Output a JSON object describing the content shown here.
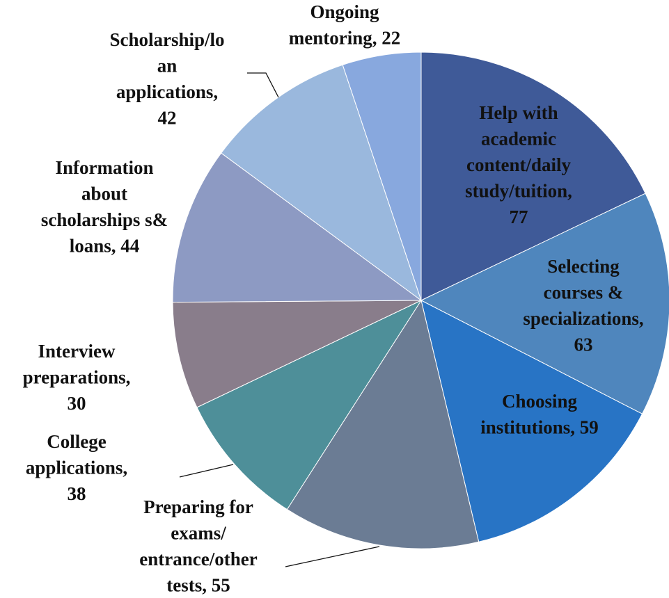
{
  "chart_data": {
    "type": "pie",
    "labels": [
      [
        "Help with",
        "academic",
        "content/daily",
        "study/tuition,",
        "77"
      ],
      [
        "Selecting",
        "courses &",
        "specializations,",
        "63"
      ],
      [
        "Choosing",
        "institutions, 59"
      ],
      [
        "Preparing for",
        "exams/",
        "entrance/other",
        "tests, 55"
      ],
      [
        "College",
        "applications,",
        "38"
      ],
      [
        "Interview",
        "preparations,",
        "30"
      ],
      [
        "Information",
        "about",
        "scholarships s&",
        "loans, 44"
      ],
      [
        "Scholarship/lo",
        "an",
        "applications,",
        "42"
      ],
      [
        "Ongoing",
        "mentoring, 22"
      ]
    ],
    "values": [
      77,
      63,
      59,
      55,
      38,
      30,
      44,
      42,
      22
    ],
    "colors": [
      "#3f5a98",
      "#4f86bd",
      "#2874c5",
      "#6b7c94",
      "#4e8f99",
      "#897d8b",
      "#8d9ac3",
      "#9ab8dd",
      "#88a8de"
    ]
  }
}
